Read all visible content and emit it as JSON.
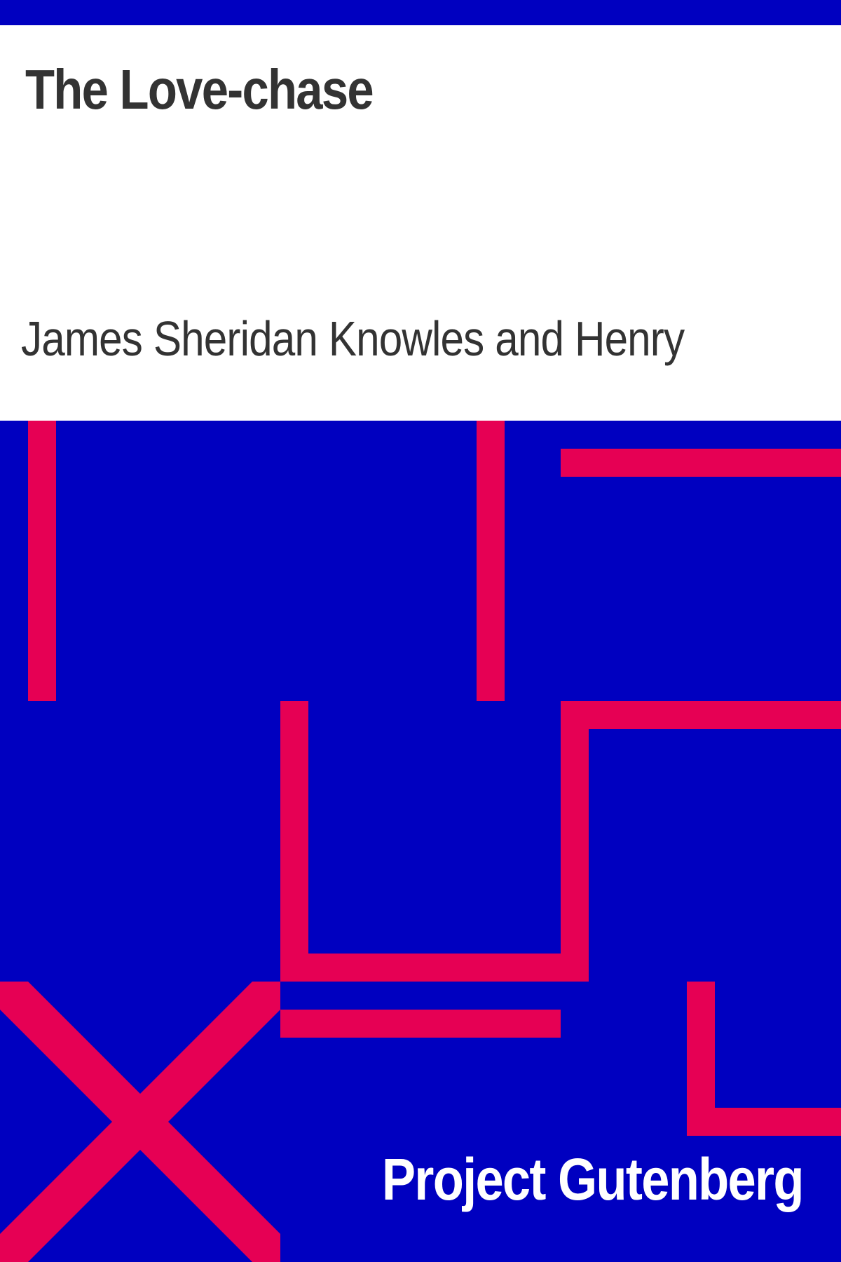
{
  "book": {
    "title": "The Love-chase",
    "author": "James Sheridan Knowles and Henry",
    "publisher": "Project Gutenberg"
  },
  "colors": {
    "background_blue": "#0000c0",
    "accent_pink": "#e60054",
    "text_dark": "#333333",
    "text_light": "#ffffff",
    "panel_white": "#ffffff"
  }
}
